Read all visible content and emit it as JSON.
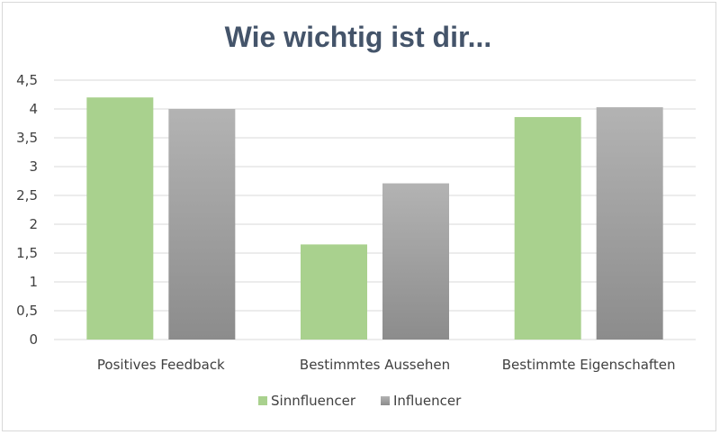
{
  "chart_data": {
    "type": "bar",
    "title": "Wie wichtig ist dir...",
    "xlabel": "",
    "ylabel": "",
    "categories": [
      "Positives Feedback",
      "Bestimmtes Aussehen",
      "Bestimmte Eigenschaften"
    ],
    "series": [
      {
        "name": "Sinnfluencer",
        "values": [
          4.2,
          1.65,
          3.86
        ]
      },
      {
        "name": "Influencer",
        "values": [
          4.0,
          2.71,
          4.03
        ]
      }
    ],
    "ylim": [
      0,
      4.5
    ],
    "yticks": [
      "0",
      "0,5",
      "1",
      "1,5",
      "2",
      "2,5",
      "3",
      "3,5",
      "4",
      "4,5"
    ],
    "grid": true,
    "legend_position": "bottom"
  },
  "colors": {
    "Sinnfluencer": "#a9d18e",
    "Influencer": "#a6a6a6",
    "title": "#44546a",
    "grid": "#d9d9d9"
  }
}
